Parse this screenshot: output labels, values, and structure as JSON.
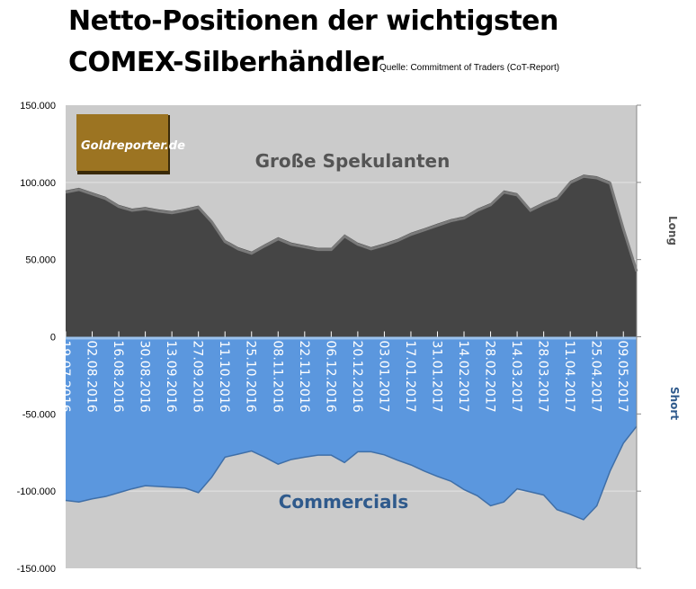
{
  "title_line1": "Netto-Positionen der wichtigsten",
  "title_line2": "COMEX-Silberhändler",
  "source": "Quelle: Commitment of Traders (CoT-Report)",
  "logo_text": "Goldreporter.de",
  "colors": {
    "long_area": "#454545",
    "short_area": "#5b97de",
    "plot_bg": "#cbcbcb",
    "commercials_label": "#2f5a8c",
    "logo": "#9c7422"
  },
  "chart_data": {
    "type": "area",
    "title": "Netto-Positionen der wichtigsten COMEX-Silberhändler",
    "ylim": [
      -150000,
      150000
    ],
    "y_ticks": [
      "150.000",
      "100.000",
      "50.000",
      "0",
      "-50.000",
      "-100.000",
      "-150.000"
    ],
    "y_tick_values": [
      150000,
      100000,
      50000,
      0,
      -50000,
      -100000,
      -150000
    ],
    "right_labels": {
      "long": "Long",
      "short": "Short"
    },
    "x_tick_labels": [
      "19.07.2016",
      "02.08.2016",
      "16.08.2016",
      "30.08.2016",
      "13.09.2016",
      "27.09.2016",
      "11.10.2016",
      "25.10.2016",
      "08.11.2016",
      "22.11.2016",
      "06.12.2016",
      "20.12.2016",
      "03.01.2017",
      "17.01.2017",
      "31.01.2017",
      "14.02.2017",
      "28.02.2017",
      "14.03.2017",
      "28.03.2017",
      "11.04.2017",
      "25.04.2017",
      "09.05.2017"
    ],
    "x_frequency": "weekly",
    "series": [
      {
        "name": "Große Spekulanten",
        "values": [
          94800,
          96500,
          93600,
          90700,
          85500,
          83000,
          84000,
          82500,
          81400,
          83000,
          85000,
          75600,
          62800,
          58000,
          55200,
          60000,
          64500,
          61000,
          59300,
          57600,
          57600,
          66300,
          61000,
          58000,
          60500,
          63400,
          67400,
          70300,
          73300,
          76200,
          78000,
          83000,
          86600,
          94800,
          93000,
          83000,
          87200,
          90700,
          101000,
          105000,
          104000,
          100600,
          71000,
          43600
        ]
      },
      {
        "name": "Commercials",
        "values": [
          -106000,
          -107000,
          -105000,
          -103500,
          -101000,
          -98500,
          -96500,
          -97000,
          -97500,
          -98000,
          -101000,
          -91000,
          -78000,
          -76000,
          -74000,
          -78000,
          -82500,
          -79500,
          -78000,
          -76700,
          -76700,
          -81500,
          -74500,
          -74500,
          -76500,
          -80000,
          -83000,
          -87000,
          -90500,
          -93500,
          -99000,
          -103000,
          -109500,
          -107000,
          -98500,
          -100500,
          -102500,
          -112000,
          -115000,
          -118500,
          -109500,
          -87000,
          -69000,
          -58000
        ]
      }
    ]
  }
}
